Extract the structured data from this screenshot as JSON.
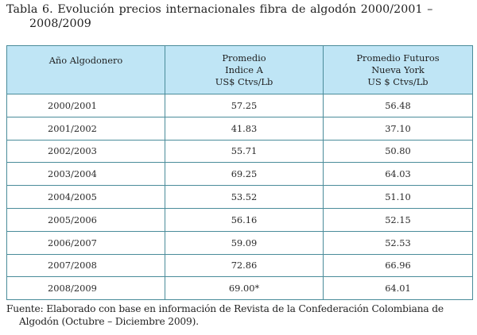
{
  "title": {
    "line1": "Tabla 6. Evolución precios internacionales fibra de algodón 2000/2001 –",
    "line2": "2008/2009"
  },
  "table": {
    "headers": {
      "year": [
        "Año Algodonero"
      ],
      "index_a": [
        "Promedio",
        "Indice A",
        "US$ Ctvs/Lb"
      ],
      "ny_futures": [
        "Promedio Futuros",
        "Nueva York",
        "US $ Ctvs/Lb"
      ]
    },
    "rows": [
      {
        "year": "2000/2001",
        "index_a": "57.25",
        "ny_futures": "56.48"
      },
      {
        "year": "2001/2002",
        "index_a": "41.83",
        "ny_futures": "37.10"
      },
      {
        "year": "2002/2003",
        "index_a": "55.71",
        "ny_futures": "50.80"
      },
      {
        "year": "2003/2004",
        "index_a": "69.25",
        "ny_futures": "64.03"
      },
      {
        "year": "2004/2005",
        "index_a": "53.52",
        "ny_futures": "51.10"
      },
      {
        "year": "2005/2006",
        "index_a": "56.16",
        "ny_futures": "52.15"
      },
      {
        "year": "2006/2007",
        "index_a": "59.09",
        "ny_futures": "52.53"
      },
      {
        "year": "2007/2008",
        "index_a": "72.86",
        "ny_futures": "66.96"
      },
      {
        "year": "2008/2009",
        "index_a": "69.00*",
        "ny_futures": "64.01"
      }
    ]
  },
  "source": {
    "line1": "Fuente: Elaborado con base en información de Revista de la Confederación Colombiana de",
    "line2": "Algodón (Octubre – Diciembre 2009)."
  },
  "colors": {
    "header_bg": "#bfe5f5",
    "border": "#4a8c9a"
  }
}
